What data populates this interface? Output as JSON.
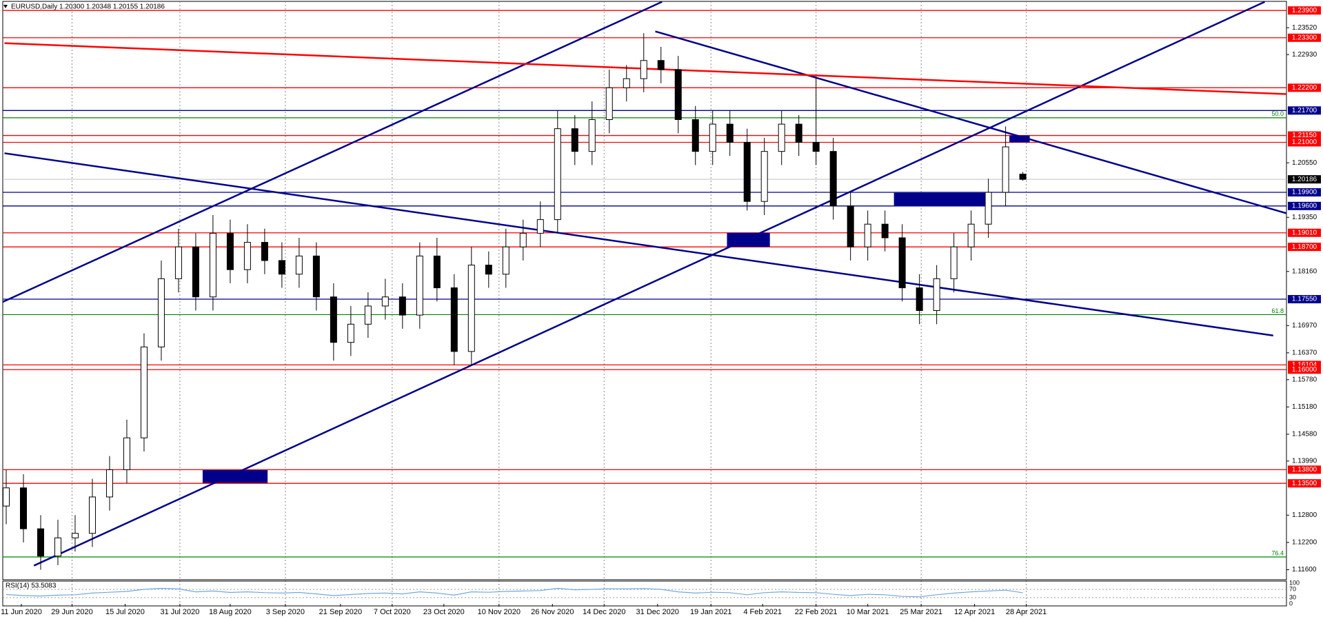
{
  "chart_data": [
    {
      "type": "candlestick",
      "title": "EURUSD,Daily  1.20300 1.20348 1.20155 1.20186",
      "x": [
        0,
        1,
        2,
        3,
        4,
        5,
        6,
        7,
        8,
        9,
        10,
        11,
        12,
        13,
        14,
        15,
        16,
        17,
        18,
        19,
        20,
        21,
        22,
        23,
        24,
        25,
        26,
        27,
        28,
        29,
        30,
        31,
        32,
        33,
        34,
        35,
        36,
        37,
        38,
        39,
        40,
        41,
        42,
        43,
        44,
        45,
        46,
        47,
        48,
        49,
        50,
        51,
        52,
        53,
        54,
        55,
        56,
        57,
        58,
        59
      ],
      "open": [
        1.13,
        1.134,
        1.125,
        1.119,
        1.123,
        1.124,
        1.132,
        1.138,
        1.145,
        1.165,
        1.18,
        1.187,
        1.176,
        1.19,
        1.182,
        1.188,
        1.184,
        1.181,
        1.185,
        1.176,
        1.166,
        1.17,
        1.174,
        1.176,
        1.172,
        1.185,
        1.178,
        1.164,
        1.183,
        1.181,
        1.187,
        1.19,
        1.193,
        1.213,
        1.208,
        1.215,
        1.222,
        1.224,
        1.228,
        1.226,
        1.215,
        1.208,
        1.214,
        1.21,
        1.197,
        1.208,
        1.214,
        1.21,
        1.208,
        1.196,
        1.187,
        1.192,
        1.189,
        1.178,
        1.173,
        1.18,
        1.187,
        1.192,
        1.199,
        1.203
      ],
      "high": [
        1.138,
        1.137,
        1.128,
        1.127,
        1.128,
        1.136,
        1.141,
        1.149,
        1.168,
        1.184,
        1.191,
        1.19,
        1.194,
        1.193,
        1.192,
        1.191,
        1.188,
        1.189,
        1.188,
        1.179,
        1.174,
        1.177,
        1.18,
        1.179,
        1.188,
        1.189,
        1.181,
        1.187,
        1.186,
        1.191,
        1.193,
        1.197,
        1.217,
        1.216,
        1.219,
        1.226,
        1.227,
        1.234,
        1.231,
        1.229,
        1.218,
        1.217,
        1.217,
        1.213,
        1.211,
        1.217,
        1.216,
        1.2245,
        1.211,
        1.199,
        1.195,
        1.195,
        1.192,
        1.181,
        1.183,
        1.19,
        1.195,
        1.202,
        1.2135,
        1.20348
      ],
      "low": [
        1.126,
        1.122,
        1.116,
        1.117,
        1.12,
        1.121,
        1.129,
        1.135,
        1.142,
        1.162,
        1.177,
        1.173,
        1.173,
        1.179,
        1.179,
        1.181,
        1.178,
        1.178,
        1.173,
        1.162,
        1.163,
        1.167,
        1.171,
        1.169,
        1.169,
        1.175,
        1.161,
        1.161,
        1.178,
        1.178,
        1.184,
        1.187,
        1.19,
        1.205,
        1.205,
        1.212,
        1.219,
        1.221,
        1.223,
        1.212,
        1.205,
        1.205,
        1.207,
        1.195,
        1.194,
        1.205,
        1.207,
        1.205,
        1.193,
        1.184,
        1.184,
        1.186,
        1.175,
        1.17,
        1.17,
        1.177,
        1.184,
        1.189,
        1.196,
        1.20155
      ],
      "close": [
        1.134,
        1.125,
        1.119,
        1.123,
        1.124,
        1.132,
        1.138,
        1.145,
        1.165,
        1.18,
        1.187,
        1.176,
        1.19,
        1.182,
        1.188,
        1.184,
        1.181,
        1.185,
        1.176,
        1.166,
        1.17,
        1.174,
        1.176,
        1.172,
        1.185,
        1.178,
        1.164,
        1.183,
        1.181,
        1.187,
        1.19,
        1.193,
        1.213,
        1.208,
        1.215,
        1.222,
        1.224,
        1.228,
        1.226,
        1.215,
        1.208,
        1.214,
        1.21,
        1.197,
        1.208,
        1.214,
        1.21,
        1.208,
        1.196,
        1.187,
        1.192,
        1.189,
        1.178,
        1.173,
        1.18,
        1.187,
        1.192,
        1.199,
        1.209,
        1.20186
      ],
      "xlim": [
        -0.2,
        74.3
      ],
      "ylim": [
        1.1138,
        1.241
      ],
      "xticks": [
        {
          "value": 0.88,
          "label": "11 Jun 2020"
        },
        {
          "value": 3.82,
          "label": "29 Jun 2020"
        },
        {
          "value": 6.9,
          "label": "15 Jul 2020"
        },
        {
          "value": 10.08,
          "label": "31 Jul 2020"
        },
        {
          "value": 13.0,
          "label": "18 Aug 2020"
        },
        {
          "value": 16.2,
          "label": "3 Sep 2020"
        },
        {
          "value": 19.4,
          "label": "21 Sep 2020"
        },
        {
          "value": 22.4,
          "label": "7 Oct 2020"
        },
        {
          "value": 25.4,
          "label": "23 Oct 2020"
        },
        {
          "value": 28.6,
          "label": "10 Nov 2020"
        },
        {
          "value": 31.7,
          "label": "26 Nov 2020"
        },
        {
          "value": 34.7,
          "label": "14 Dec 2020"
        },
        {
          "value": 37.8,
          "label": "31 Dec 2020"
        },
        {
          "value": 40.9,
          "label": "19 Jan 2021"
        },
        {
          "value": 43.9,
          "label": "4 Feb 2021"
        },
        {
          "value": 47.0,
          "label": "22 Feb 2021"
        },
        {
          "value": 50.0,
          "label": "10 Mar 2021"
        },
        {
          "value": 53.1,
          "label": "25 Mar 2021"
        },
        {
          "value": 56.2,
          "label": "12 Apr 2021"
        },
        {
          "value": 59.2,
          "label": "28 Apr 2021"
        }
      ],
      "yticks": [
        {
          "value": 1.2352,
          "label": "1.23520"
        },
        {
          "value": 1.2293,
          "label": "1.22930"
        },
        {
          "value": 1.2055,
          "label": "1.20550"
        },
        {
          "value": 1.1935,
          "label": "1.19350"
        },
        {
          "value": 1.1816,
          "label": "1.18160"
        },
        {
          "value": 1.1697,
          "label": "1.16970"
        },
        {
          "value": 1.1637,
          "label": "1.16370"
        },
        {
          "value": 1.1578,
          "label": "1.15780"
        },
        {
          "value": 1.1518,
          "label": "1.15180"
        },
        {
          "value": 1.1458,
          "label": "1.14580"
        },
        {
          "value": 1.1399,
          "label": "1.13990"
        },
        {
          "value": 1.128,
          "label": "1.12800"
        },
        {
          "value": 1.122,
          "label": "1.12200"
        },
        {
          "value": 1.116,
          "label": "1.11600"
        }
      ],
      "levels": [
        {
          "value": 1.239,
          "label": "1.23900",
          "color": "#ff0000"
        },
        {
          "value": 1.233,
          "label": "1.23300",
          "color": "#ff0000"
        },
        {
          "value": 1.222,
          "label": "1.22200",
          "color": "#ff0000"
        },
        {
          "value": 1.217,
          "label": "1.21700",
          "color": "#00008b"
        },
        {
          "value": 1.2115,
          "label": "1.21150",
          "color": "#ff0000"
        },
        {
          "value": 1.21,
          "label": "1.21000",
          "color": "#ff0000"
        },
        {
          "value": 1.199,
          "label": "1.19900",
          "color": "#00008b"
        },
        {
          "value": 1.196,
          "label": "1.19600",
          "color": "#00008b"
        },
        {
          "value": 1.1901,
          "label": "1.19010",
          "color": "#ff0000"
        },
        {
          "value": 1.187,
          "label": "1.18700",
          "color": "#ff0000"
        },
        {
          "value": 1.1755,
          "label": "1.17550",
          "color": "#00008b"
        },
        {
          "value": 1.16104,
          "label": "1.16104",
          "color": "#ff0000"
        },
        {
          "value": 1.16,
          "label": "1.16000",
          "color": "#ff0000"
        },
        {
          "value": 1.138,
          "label": "1.13800",
          "color": "#ff0000"
        },
        {
          "value": 1.135,
          "label": "1.13500",
          "color": "#ff0000"
        }
      ],
      "last_price": {
        "value": 1.20186,
        "label": "1.20186",
        "color": "#000000"
      },
      "fib_levels": [
        {
          "value": 1.2154,
          "label": "50.0"
        },
        {
          "value": 1.1721,
          "label": "61.8"
        },
        {
          "value": 1.1188,
          "label": "76.4"
        }
      ],
      "fib_color": "#008000",
      "trendlines": [
        {
          "x": [
            -0.2,
            38.06
          ],
          "y": [
            1.1749,
            1.2409
          ],
          "color": "#00008b"
        },
        {
          "x": [
            1.61,
            73.04
          ],
          "y": [
            1.1169,
            1.2409
          ],
          "color": "#00008b"
        },
        {
          "x": [
            -0.1,
            73.53
          ],
          "y": [
            1.2076,
            1.1675
          ],
          "color": "#00008b"
        },
        {
          "x": [
            37.67,
            74.3
          ],
          "y": [
            1.2344,
            1.1944
          ],
          "color": "#00008b"
        },
        {
          "x": [
            -0.1,
            74.3
          ],
          "y": [
            1.2318,
            1.2206
          ],
          "color": "#ff0000"
        }
      ],
      "zones": [
        {
          "x": [
            11.4,
            15.17
          ],
          "y": [
            1.1379,
            1.1351
          ]
        },
        {
          "x": [
            41.83,
            44.32
          ],
          "y": [
            1.1901,
            1.187
          ]
        },
        {
          "x": [
            51.52,
            56.85
          ],
          "y": [
            1.1989,
            1.1959
          ]
        },
        {
          "x": [
            58.22,
            59.4
          ],
          "y": [
            1.2115,
            1.21
          ]
        }
      ],
      "zone_color": "#00008b"
    },
    {
      "type": "line",
      "title": "RSI(14) 53.5083",
      "x": [
        0,
        1,
        2,
        3,
        4,
        5,
        6,
        7,
        8,
        9,
        10,
        11,
        12,
        13,
        14,
        15,
        16,
        17,
        18,
        19,
        20,
        21,
        22,
        23,
        24,
        25,
        26,
        27,
        28,
        29,
        30,
        31,
        32,
        33,
        34,
        35,
        36,
        37,
        38,
        39,
        40,
        41,
        42,
        43,
        44,
        45,
        46,
        47,
        48,
        49,
        50,
        51,
        52,
        53,
        54,
        55,
        56,
        57,
        58,
        59
      ],
      "values": [
        45,
        40,
        38,
        42,
        44,
        52,
        56,
        60,
        70,
        75,
        72,
        58,
        62,
        55,
        58,
        54,
        52,
        55,
        48,
        40,
        45,
        50,
        52,
        48,
        58,
        52,
        42,
        58,
        56,
        60,
        62,
        64,
        75,
        68,
        70,
        73,
        72,
        74,
        70,
        58,
        52,
        56,
        54,
        44,
        54,
        58,
        55,
        54,
        46,
        40,
        46,
        44,
        36,
        34,
        44,
        52,
        58,
        62,
        66,
        53.5083
      ],
      "color": "#6fa8dc",
      "xlim": [
        -0.2,
        74.3
      ],
      "ylim": [
        0,
        100
      ],
      "yticks": [
        100,
        70,
        30,
        0
      ]
    }
  ]
}
